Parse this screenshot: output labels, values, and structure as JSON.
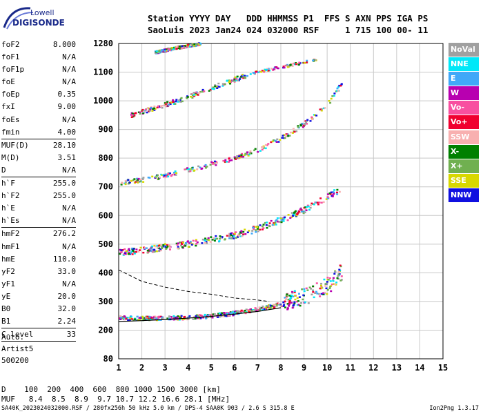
{
  "logo": {
    "brand_top": "Lowell",
    "brand_bottom": "DIGISONDE"
  },
  "header": {
    "line1": "Station YYYY DAY   DDD HHMMSS P1  FFS S AXN PPS IGA PS",
    "line2": "SaoLuis 2023 Jan24 024 032000 RSF     1 715 100 00- 11"
  },
  "params": [
    {
      "name": "foF2",
      "value": "8.000"
    },
    {
      "name": "foF1",
      "value": "N/A"
    },
    {
      "name": "foF1p",
      "value": "N/A"
    },
    {
      "name": "foE",
      "value": "N/A"
    },
    {
      "name": "foEp",
      "value": "0.35"
    },
    {
      "name": "fxI",
      "value": "9.00"
    },
    {
      "name": "foEs",
      "value": "N/A"
    },
    {
      "name": "fmin",
      "value": "4.00"
    },
    {
      "name": "",
      "value": ""
    },
    {
      "name": "MUF(D)",
      "value": "28.10"
    },
    {
      "name": "M(D)",
      "value": "3.51"
    },
    {
      "name": "D",
      "value": "N/A"
    },
    {
      "name": "",
      "value": ""
    },
    {
      "name": "h`F",
      "value": "255.0"
    },
    {
      "name": "h`F2",
      "value": "255.0"
    },
    {
      "name": "h`E",
      "value": "N/A"
    },
    {
      "name": "h`Es",
      "value": "N/A"
    },
    {
      "name": "",
      "value": ""
    },
    {
      "name": "hmF2",
      "value": "276.2"
    },
    {
      "name": "hmF1",
      "value": "N/A"
    },
    {
      "name": "hmE",
      "value": "110.0"
    },
    {
      "name": "yF2",
      "value": "33.0"
    },
    {
      "name": "yF1",
      "value": "N/A"
    },
    {
      "name": "yE",
      "value": "20.0"
    },
    {
      "name": "B0",
      "value": "32.0"
    },
    {
      "name": "B1",
      "value": "2.24"
    },
    {
      "name": "",
      "value": ""
    },
    {
      "name": "C-level",
      "value": "33"
    }
  ],
  "auto": {
    "line1": "Auto:",
    "line2": "Artist5",
    "line3": "500200"
  },
  "legend": [
    {
      "label": "NoVal",
      "color": "#a0a0a0"
    },
    {
      "label": "NNE",
      "color": "#00e8f8"
    },
    {
      "label": "E",
      "color": "#40a8f8"
    },
    {
      "label": "W",
      "color": "#b800b0"
    },
    {
      "label": "Vo-",
      "color": "#f850a0"
    },
    {
      "label": "Vo+",
      "color": "#f00030"
    },
    {
      "label": "SSW",
      "color": "#f8b0b0"
    },
    {
      "label": "X-",
      "color": "#008000"
    },
    {
      "label": "X+",
      "color": "#70b050"
    },
    {
      "label": "SSE",
      "color": "#d8d800"
    },
    {
      "label": "NNW",
      "color": "#1010e0"
    }
  ],
  "distance_table": {
    "d_line": "D    100  200  400  600  800 1000 1500 3000 [km]",
    "muf_line": "MUF   8.4  8.5  8.9  9.7 10.7 12.2 16.6 28.1 [MHz]"
  },
  "footer": {
    "text": "SA40K_2023024032000.RSF / 280fx256h 50 kHz 5.0 km / DPS-4 SAA0K 903 / 2.6 S 315.8 E",
    "version": "Ion2Png 1.3.17"
  },
  "chart_data": {
    "type": "scatter",
    "xlim": [
      1,
      15
    ],
    "x_ticks": [
      "1",
      "2",
      "3",
      "4",
      "5",
      "6",
      "7",
      "8",
      "9",
      "10",
      "11",
      "12",
      "13",
      "14",
      "15"
    ],
    "y_ticks": [
      {
        "v": 80,
        "label": "80"
      },
      {
        "v": 200,
        "label": "200"
      },
      {
        "v": 300,
        "label": "300"
      },
      {
        "v": 400,
        "label": "400"
      },
      {
        "v": 500,
        "label": "500"
      },
      {
        "v": 600,
        "label": "600"
      },
      {
        "v": 700,
        "label": "700"
      },
      {
        "v": 800,
        "label": "800"
      },
      {
        "v": 900,
        "label": "900"
      },
      {
        "v": 1000,
        "label": "1000"
      },
      {
        "v": 1100,
        "label": "1100"
      },
      {
        "v": 1280,
        "label": "1280"
      }
    ],
    "grid": true,
    "traces": [
      {
        "name": "F2 O-trace 1st hop",
        "x": [
          1.0,
          2.0,
          3.0,
          4.0,
          5.0,
          6.0,
          7.0,
          8.0,
          9.0,
          10.0,
          10.6
        ],
        "y": [
          243,
          242,
          243,
          245,
          250,
          260,
          275,
          290,
          310,
          350,
          400
        ]
      },
      {
        "name": "F2 2nd hop",
        "x": [
          1.0,
          2.0,
          3.0,
          4.0,
          5.0,
          6.0,
          7.0,
          8.0,
          9.0,
          10.0,
          10.5
        ],
        "y": [
          470,
          478,
          490,
          500,
          515,
          530,
          555,
          585,
          620,
          665,
          690
        ]
      },
      {
        "name": "F2 3rd hop",
        "x": [
          1.0,
          2.0,
          3.0,
          4.0,
          5.0,
          6.0,
          7.0,
          8.0,
          9.0,
          10.0,
          10.6
        ],
        "y": [
          715,
          725,
          740,
          760,
          780,
          800,
          830,
          870,
          920,
          990,
          1060
        ]
      },
      {
        "name": "F2 4th hop",
        "x": [
          1.5,
          2.5,
          3.5,
          4.5,
          5.5,
          6.5,
          7.5,
          8.5,
          9.5
        ],
        "y": [
          950,
          975,
          1000,
          1030,
          1060,
          1090,
          1120,
          1150,
          1180
        ]
      },
      {
        "name": "F2 5th hop",
        "x": [
          2.5,
          3.0,
          3.5,
          4.0,
          4.5
        ],
        "y": [
          1225,
          1240,
          1255,
          1268,
          1280
        ]
      }
    ],
    "profile": {
      "x": [
        1.0,
        2.0,
        3.0,
        4.0,
        5.0,
        6.0,
        7.0,
        8.0
      ],
      "y": [
        230,
        233,
        237,
        242,
        248,
        256,
        265,
        278
      ]
    },
    "extrapolation": {
      "x": [
        1.0,
        1.5,
        2.0,
        3.0,
        4.0,
        5.0,
        6.0,
        7.0,
        7.5
      ],
      "y": [
        410,
        390,
        370,
        350,
        335,
        325,
        312,
        305,
        300
      ]
    }
  }
}
